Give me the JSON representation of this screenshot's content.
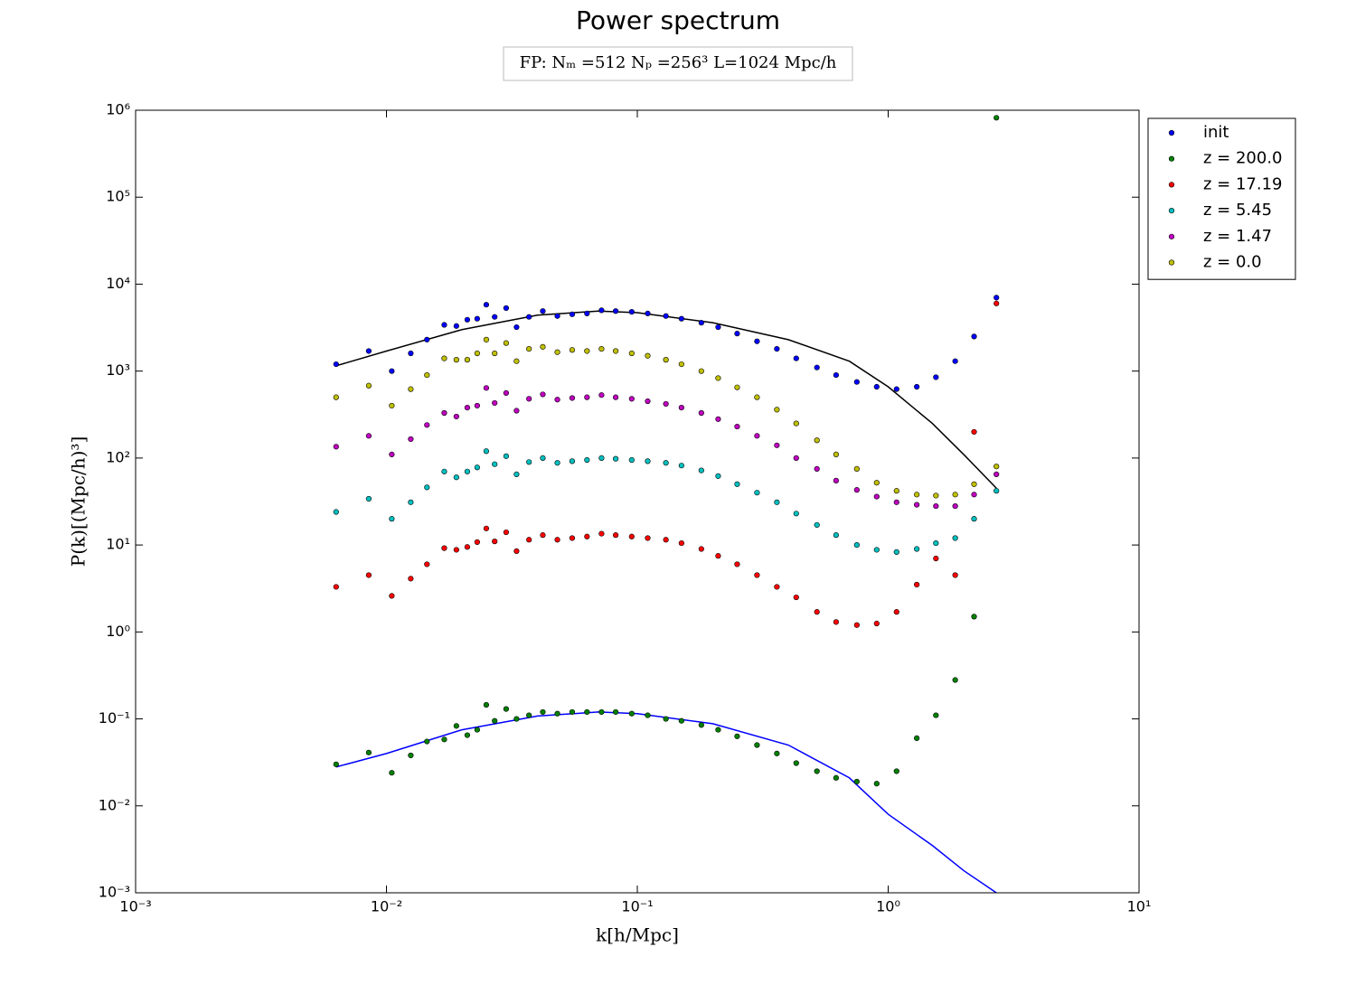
{
  "chart_data": {
    "type": "scatter",
    "title": "Power spectrum",
    "annotation": "FP:  Nₘ =512  Nₚ =256³  L=1024 Mpc/h",
    "xlabel": "k[h/Mpc]",
    "ylabel": "P(k)[(Mpc/h)³]",
    "xscale": "log",
    "yscale": "log",
    "xlim": [
      0.001,
      10
    ],
    "ylim": [
      0.001,
      1000000
    ],
    "xticks": [
      {
        "value": 0.001,
        "label": "10⁻³"
      },
      {
        "value": 0.01,
        "label": "10⁻²"
      },
      {
        "value": 0.1,
        "label": "10⁻¹"
      },
      {
        "value": 1,
        "label": "10⁰"
      },
      {
        "value": 10,
        "label": "10¹"
      }
    ],
    "yticks": [
      {
        "value": 0.001,
        "label": "10⁻³"
      },
      {
        "value": 0.01,
        "label": "10⁻²"
      },
      {
        "value": 0.1,
        "label": "10⁻¹"
      },
      {
        "value": 1,
        "label": "10⁰"
      },
      {
        "value": 10,
        "label": "10¹"
      },
      {
        "value": 100,
        "label": "10²"
      },
      {
        "value": 1000,
        "label": "10³"
      },
      {
        "value": 10000,
        "label": "10⁴"
      },
      {
        "value": 100000,
        "label": "10⁵"
      },
      {
        "value": 1000000,
        "label": "10⁶"
      }
    ],
    "grid": false,
    "legend": "outside upper right",
    "x": [
      0.0063,
      0.0085,
      0.0105,
      0.0125,
      0.0145,
      0.017,
      0.019,
      0.021,
      0.023,
      0.025,
      0.027,
      0.03,
      0.033,
      0.037,
      0.042,
      0.048,
      0.055,
      0.063,
      0.072,
      0.082,
      0.095,
      0.11,
      0.13,
      0.15,
      0.18,
      0.21,
      0.25,
      0.3,
      0.36,
      0.43,
      0.52,
      0.62,
      0.75,
      0.9,
      1.08,
      1.3,
      1.55,
      1.85,
      2.2,
      2.7
    ],
    "series": [
      {
        "name": "init",
        "color": "#0000ff",
        "values": [
          1200,
          1700,
          1000,
          1600,
          2300,
          3400,
          3300,
          3900,
          4000,
          5800,
          4200,
          5300,
          3200,
          4200,
          4900,
          4300,
          4500,
          4600,
          5000,
          4900,
          4800,
          4600,
          4300,
          4000,
          3600,
          3200,
          2700,
          2200,
          1800,
          1400,
          1100,
          900,
          750,
          660,
          620,
          660,
          850,
          1300,
          2500,
          7000
        ]
      },
      {
        "name": "z = 200.0",
        "color": "#008000",
        "values": [
          0.03,
          0.041,
          0.024,
          0.038,
          0.055,
          0.058,
          0.083,
          0.065,
          0.075,
          0.145,
          0.095,
          0.13,
          0.1,
          0.11,
          0.12,
          0.115,
          0.12,
          0.12,
          0.12,
          0.12,
          0.115,
          0.11,
          0.1,
          0.095,
          0.085,
          0.075,
          0.063,
          0.05,
          0.04,
          0.031,
          0.025,
          0.021,
          0.019,
          0.018,
          0.025,
          0.06,
          0.11,
          0.28,
          1.5,
          820000
        ]
      },
      {
        "name": "z = 17.19",
        "color": "#ff0000",
        "values": [
          3.3,
          4.5,
          2.6,
          4.1,
          6.0,
          9.2,
          8.8,
          9.5,
          10.8,
          15.5,
          11,
          14,
          8.5,
          11.5,
          13,
          11.5,
          12,
          12.5,
          13.5,
          13,
          12.5,
          12,
          11.5,
          10.5,
          9,
          7.5,
          6,
          4.5,
          3.3,
          2.5,
          1.7,
          1.3,
          1.2,
          1.25,
          1.7,
          3.5,
          7,
          4.5,
          200,
          6000
        ]
      },
      {
        "name": "z = 5.45",
        "color": "#00bfbf",
        "values": [
          24,
          34,
          20,
          31,
          46,
          70,
          60,
          70,
          78,
          120,
          85,
          105,
          65,
          90,
          100,
          88,
          92,
          95,
          100,
          98,
          95,
          92,
          88,
          82,
          72,
          62,
          50,
          40,
          31,
          23,
          17,
          13,
          10,
          8.8,
          8.3,
          9,
          10.5,
          12,
          20,
          42
        ]
      },
      {
        "name": "z = 1.47",
        "color": "#bf00bf",
        "values": [
          135,
          180,
          110,
          165,
          240,
          330,
          300,
          380,
          400,
          640,
          430,
          560,
          350,
          480,
          540,
          470,
          490,
          500,
          530,
          500,
          480,
          450,
          420,
          380,
          330,
          280,
          230,
          180,
          140,
          100,
          75,
          55,
          43,
          36,
          31,
          29,
          28,
          28,
          38,
          65
        ]
      },
      {
        "name": "z = 0.0",
        "color": "#bfbf00",
        "values": [
          500,
          680,
          400,
          620,
          900,
          1400,
          1350,
          1350,
          1600,
          2300,
          1600,
          2100,
          1300,
          1800,
          1900,
          1650,
          1750,
          1700,
          1800,
          1700,
          1600,
          1500,
          1350,
          1200,
          1000,
          830,
          650,
          500,
          360,
          250,
          160,
          110,
          75,
          52,
          42,
          38,
          37,
          38,
          50,
          80
        ]
      }
    ],
    "lines": [
      {
        "color": "#000000",
        "x": [
          0.0063,
          0.01,
          0.02,
          0.04,
          0.07,
          0.1,
          0.2,
          0.4,
          0.7,
          1.0,
          1.5,
          2.0,
          2.7
        ],
        "values": [
          1150,
          1700,
          3000,
          4400,
          4900,
          4700,
          3600,
          2300,
          1300,
          660,
          250,
          110,
          45
        ]
      },
      {
        "color": "#0000ff",
        "x": [
          0.0063,
          0.01,
          0.02,
          0.04,
          0.07,
          0.1,
          0.2,
          0.4,
          0.7,
          1.0,
          1.5,
          2.0,
          2.7
        ],
        "values": [
          0.028,
          0.04,
          0.075,
          0.108,
          0.12,
          0.115,
          0.088,
          0.05,
          0.021,
          0.008,
          0.0035,
          0.0018,
          0.001
        ]
      }
    ]
  }
}
